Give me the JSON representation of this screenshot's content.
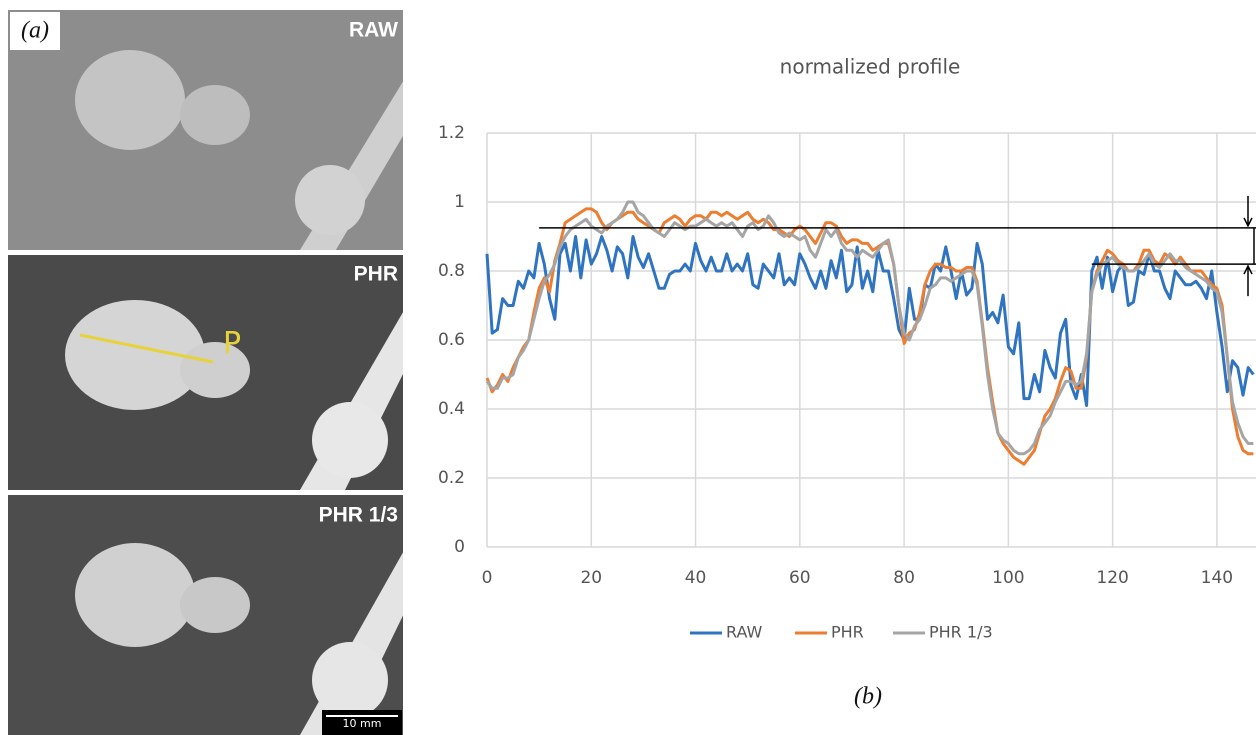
{
  "figure_a": {
    "label": "(a)",
    "panels": [
      {
        "label": "RAW"
      },
      {
        "label": "PHR"
      },
      {
        "label": "PHR 1/3"
      }
    ],
    "marker": "P",
    "scale_bar": "10 mm"
  },
  "chart_data": {
    "type": "line",
    "title": "normalized profile",
    "panel_label": "(b)",
    "x": [
      0,
      1,
      2,
      3,
      4,
      5,
      6,
      7,
      8,
      9,
      10,
      11,
      12,
      13,
      14,
      15,
      16,
      17,
      18,
      19,
      20,
      21,
      22,
      23,
      24,
      25,
      26,
      27,
      28,
      29,
      30,
      31,
      32,
      33,
      34,
      35,
      36,
      37,
      38,
      39,
      40,
      41,
      42,
      43,
      44,
      45,
      46,
      47,
      48,
      49,
      50,
      51,
      52,
      53,
      54,
      55,
      56,
      57,
      58,
      59,
      60,
      61,
      62,
      63,
      64,
      65,
      66,
      67,
      68,
      69,
      70,
      71,
      72,
      73,
      74,
      75,
      76,
      77,
      78,
      79,
      80,
      81,
      82,
      83,
      84,
      85,
      86,
      87,
      88,
      89,
      90,
      91,
      92,
      93,
      94,
      95,
      96,
      97,
      98,
      99,
      100,
      101,
      102,
      103,
      104,
      105,
      106,
      107,
      108,
      109,
      110,
      111,
      112,
      113,
      114,
      115,
      116,
      117,
      118,
      119,
      120,
      121,
      122,
      123,
      124,
      125,
      126,
      127,
      128,
      129,
      130,
      131,
      132,
      133,
      134,
      135,
      136,
      137,
      138,
      139,
      140,
      141,
      142,
      143,
      144,
      145,
      146,
      147
    ],
    "series": [
      {
        "name": "RAW",
        "color": "#2f74c0",
        "values": [
          0.85,
          0.62,
          0.63,
          0.72,
          0.7,
          0.7,
          0.77,
          0.75,
          0.8,
          0.78,
          0.88,
          0.82,
          0.72,
          0.66,
          0.85,
          0.88,
          0.8,
          0.9,
          0.78,
          0.89,
          0.82,
          0.85,
          0.9,
          0.86,
          0.8,
          0.87,
          0.85,
          0.78,
          0.9,
          0.84,
          0.81,
          0.85,
          0.8,
          0.75,
          0.75,
          0.79,
          0.8,
          0.8,
          0.82,
          0.8,
          0.88,
          0.83,
          0.8,
          0.84,
          0.8,
          0.8,
          0.85,
          0.8,
          0.82,
          0.8,
          0.85,
          0.76,
          0.75,
          0.82,
          0.8,
          0.78,
          0.85,
          0.76,
          0.78,
          0.76,
          0.85,
          0.82,
          0.78,
          0.75,
          0.8,
          0.75,
          0.83,
          0.78,
          0.86,
          0.74,
          0.76,
          0.87,
          0.75,
          0.8,
          0.74,
          0.86,
          0.8,
          0.8,
          0.72,
          0.63,
          0.6,
          0.75,
          0.66,
          0.66,
          0.76,
          0.75,
          0.82,
          0.8,
          0.87,
          0.8,
          0.72,
          0.8,
          0.73,
          0.75,
          0.88,
          0.82,
          0.66,
          0.68,
          0.65,
          0.73,
          0.58,
          0.56,
          0.65,
          0.43,
          0.43,
          0.5,
          0.45,
          0.57,
          0.52,
          0.49,
          0.62,
          0.66,
          0.47,
          0.43,
          0.5,
          0.41,
          0.8,
          0.84,
          0.75,
          0.84,
          0.74,
          0.8,
          0.82,
          0.7,
          0.71,
          0.8,
          0.79,
          0.85,
          0.8,
          0.8,
          0.75,
          0.72,
          0.8,
          0.78,
          0.76,
          0.76,
          0.77,
          0.75,
          0.72,
          0.8,
          0.68,
          0.58,
          0.45,
          0.54,
          0.52,
          0.44,
          0.52,
          0.5
        ]
      },
      {
        "name": "PHR",
        "color": "#ed7d31",
        "values": [
          0.49,
          0.45,
          0.47,
          0.5,
          0.48,
          0.52,
          0.55,
          0.58,
          0.6,
          0.68,
          0.75,
          0.78,
          0.74,
          0.83,
          0.88,
          0.94,
          0.95,
          0.96,
          0.97,
          0.98,
          0.98,
          0.97,
          0.94,
          0.92,
          0.94,
          0.95,
          0.96,
          0.97,
          0.97,
          0.95,
          0.94,
          0.93,
          0.92,
          0.91,
          0.94,
          0.95,
          0.96,
          0.95,
          0.93,
          0.95,
          0.96,
          0.96,
          0.95,
          0.97,
          0.97,
          0.96,
          0.97,
          0.96,
          0.95,
          0.96,
          0.97,
          0.95,
          0.94,
          0.95,
          0.94,
          0.92,
          0.92,
          0.91,
          0.9,
          0.92,
          0.93,
          0.92,
          0.9,
          0.88,
          0.91,
          0.94,
          0.94,
          0.93,
          0.9,
          0.88,
          0.89,
          0.89,
          0.88,
          0.88,
          0.86,
          0.87,
          0.88,
          0.88,
          0.82,
          0.7,
          0.59,
          0.62,
          0.63,
          0.68,
          0.76,
          0.8,
          0.82,
          0.82,
          0.81,
          0.81,
          0.8,
          0.8,
          0.81,
          0.81,
          0.77,
          0.65,
          0.52,
          0.42,
          0.33,
          0.3,
          0.28,
          0.26,
          0.25,
          0.24,
          0.26,
          0.28,
          0.33,
          0.38,
          0.4,
          0.43,
          0.48,
          0.52,
          0.51,
          0.46,
          0.46,
          0.55,
          0.74,
          0.8,
          0.83,
          0.86,
          0.85,
          0.83,
          0.82,
          0.8,
          0.8,
          0.82,
          0.86,
          0.86,
          0.83,
          0.82,
          0.85,
          0.84,
          0.82,
          0.84,
          0.82,
          0.8,
          0.8,
          0.8,
          0.78,
          0.76,
          0.75,
          0.7,
          0.55,
          0.4,
          0.32,
          0.28,
          0.27,
          0.27
        ]
      },
      {
        "name": "PHR 1/3",
        "color": "#a5a5a5",
        "values": [
          0.48,
          0.46,
          0.46,
          0.49,
          0.49,
          0.5,
          0.55,
          0.57,
          0.6,
          0.66,
          0.72,
          0.77,
          0.79,
          0.82,
          0.87,
          0.9,
          0.92,
          0.93,
          0.94,
          0.95,
          0.93,
          0.92,
          0.91,
          0.93,
          0.94,
          0.95,
          0.97,
          1.0,
          1.0,
          0.97,
          0.96,
          0.94,
          0.92,
          0.91,
          0.9,
          0.92,
          0.94,
          0.93,
          0.92,
          0.93,
          0.93,
          0.94,
          0.95,
          0.94,
          0.93,
          0.94,
          0.93,
          0.94,
          0.92,
          0.9,
          0.93,
          0.94,
          0.92,
          0.93,
          0.96,
          0.94,
          0.91,
          0.9,
          0.91,
          0.9,
          0.89,
          0.9,
          0.86,
          0.84,
          0.88,
          0.92,
          0.9,
          0.92,
          0.88,
          0.86,
          0.86,
          0.84,
          0.86,
          0.85,
          0.84,
          0.86,
          0.88,
          0.89,
          0.82,
          0.7,
          0.62,
          0.6,
          0.64,
          0.66,
          0.7,
          0.75,
          0.76,
          0.78,
          0.78,
          0.77,
          0.78,
          0.79,
          0.8,
          0.8,
          0.76,
          0.64,
          0.5,
          0.4,
          0.33,
          0.31,
          0.3,
          0.28,
          0.27,
          0.27,
          0.28,
          0.3,
          0.34,
          0.36,
          0.38,
          0.42,
          0.45,
          0.48,
          0.48,
          0.47,
          0.48,
          0.56,
          0.74,
          0.79,
          0.82,
          0.83,
          0.84,
          0.82,
          0.81,
          0.8,
          0.8,
          0.81,
          0.83,
          0.85,
          0.82,
          0.81,
          0.83,
          0.85,
          0.83,
          0.83,
          0.81,
          0.8,
          0.79,
          0.78,
          0.77,
          0.75,
          0.74,
          0.68,
          0.55,
          0.42,
          0.36,
          0.32,
          0.3,
          0.3
        ]
      }
    ],
    "reference_lines": [
      {
        "y": 0.925,
        "x_start": 10
      },
      {
        "y": 0.82,
        "x_start": 116
      }
    ],
    "xlim": [
      0,
      147.5
    ],
    "xticks": [
      0,
      20,
      40,
      60,
      80,
      100,
      120,
      140
    ],
    "ylim": [
      0,
      1.2
    ],
    "yticks": [
      0,
      0.2,
      0.4,
      0.6,
      0.8,
      1,
      1.2
    ],
    "grid": true,
    "legend": "bottom"
  }
}
